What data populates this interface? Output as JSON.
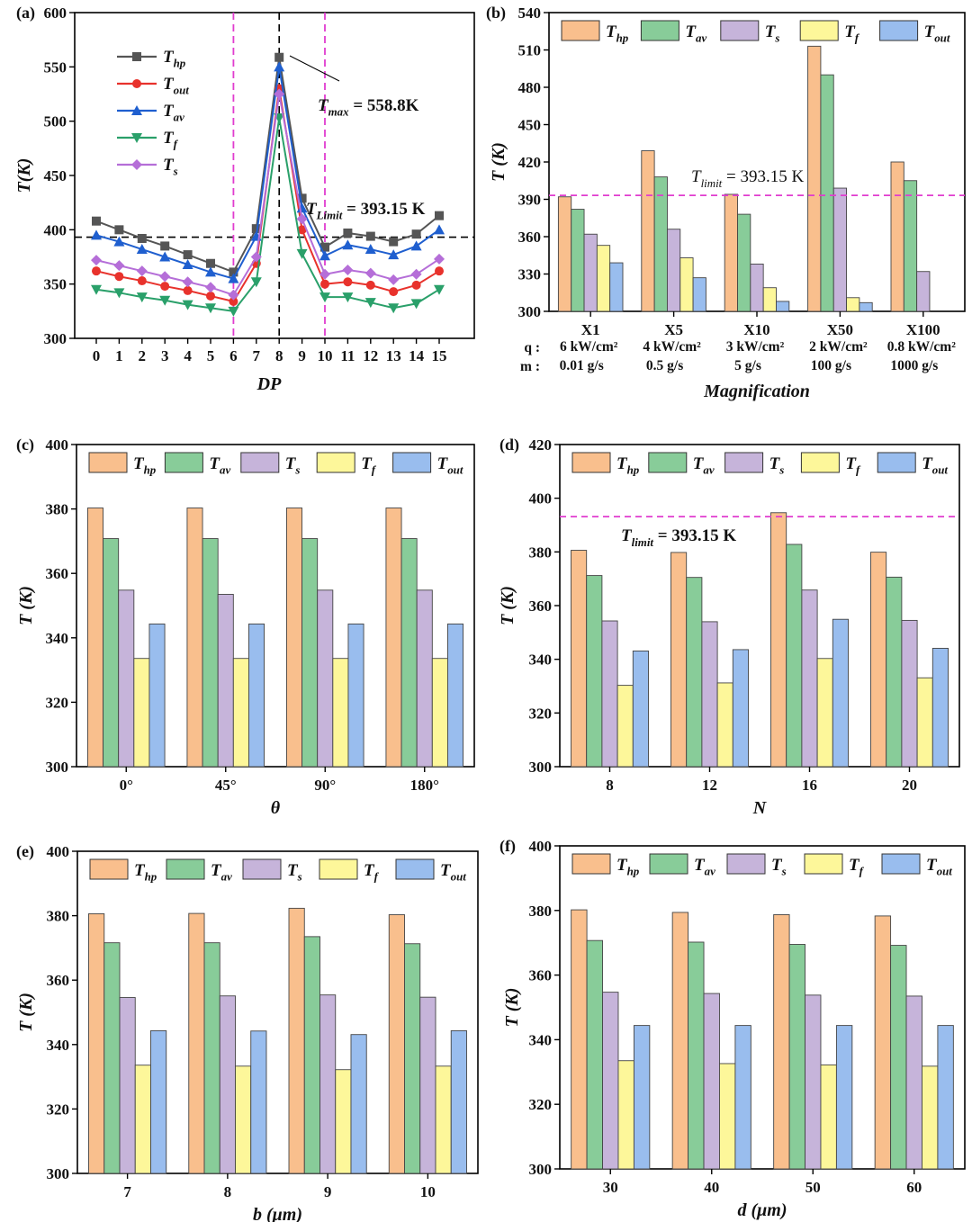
{
  "colors": {
    "T_hp": "#f9bf8d",
    "T_av": "#88cc99",
    "T_s": "#c6b4da",
    "T_f": "#fdf79a",
    "T_out": "#99bdee",
    "line_T_hp": "#555555",
    "line_T_out": "#e8322c",
    "line_T_av": "#1f5fcf",
    "line_T_f": "#2aa06a",
    "line_T_s": "#b56ed8",
    "limit_dash": "#e03ccf",
    "black_dash": "#000000"
  },
  "legend": [
    {
      "key": "T_hp",
      "base": "T",
      "sub": "hp"
    },
    {
      "key": "T_av",
      "base": "T",
      "sub": "av"
    },
    {
      "key": "T_s",
      "base": "T",
      "sub": "s"
    },
    {
      "key": "T_f",
      "base": "T",
      "sub": "f"
    },
    {
      "key": "T_out",
      "base": "T",
      "sub": "out"
    }
  ],
  "line_legend": [
    {
      "key": "T_hp",
      "base": "T",
      "sub": "hp",
      "marker": "square"
    },
    {
      "key": "T_out",
      "base": "T",
      "sub": "out",
      "marker": "circle"
    },
    {
      "key": "T_av",
      "base": "T",
      "sub": "av",
      "marker": "triangle-up"
    },
    {
      "key": "T_f",
      "base": "T",
      "sub": "f",
      "marker": "triangle-down"
    },
    {
      "key": "T_s",
      "base": "T",
      "sub": "s",
      "marker": "diamond"
    }
  ],
  "chart_data": [
    {
      "id": "a",
      "panel_label": "(a)",
      "type": "line",
      "xlabel": "DP",
      "ylabel": "T(K)",
      "ylim": [
        300,
        600
      ],
      "yticks": [
        300,
        350,
        400,
        450,
        500,
        550,
        600
      ],
      "x": [
        0,
        1,
        2,
        3,
        4,
        5,
        6,
        7,
        8,
        9,
        10,
        11,
        12,
        13,
        14,
        15
      ],
      "series": [
        {
          "key": "T_hp",
          "values": [
            408,
            400,
            392,
            385,
            377,
            369,
            361,
            401,
            558.8,
            429,
            384,
            397,
            394,
            389,
            396,
            413
          ]
        },
        {
          "key": "T_out",
          "values": [
            362,
            357,
            353,
            348,
            344,
            339,
            334,
            369,
            530,
            400,
            350,
            352,
            349,
            343,
            349,
            362
          ]
        },
        {
          "key": "T_av",
          "values": [
            395,
            389,
            382,
            375,
            368,
            361,
            355,
            394,
            550,
            420,
            376,
            386,
            382,
            377,
            385,
            400
          ]
        },
        {
          "key": "T_f",
          "values": [
            345,
            342,
            338,
            335,
            331,
            328,
            325,
            352,
            503,
            378,
            338,
            338,
            333,
            328,
            332,
            345
          ]
        },
        {
          "key": "T_s",
          "values": [
            372,
            367,
            362,
            357,
            352,
            347,
            340,
            375,
            525,
            410,
            359,
            363,
            360,
            354,
            359,
            373
          ]
        }
      ],
      "hline": 393.15,
      "vlines_magenta": [
        6,
        10
      ],
      "vline_black": 8,
      "annotations": {
        "tmax_base": "T",
        "tmax_sub": "max",
        "tmax_text": " = 558.8K",
        "tlimit_base": "T",
        "tlimit_sub": "Limit",
        "tlimit_text": " = 393.15 K"
      }
    },
    {
      "id": "b",
      "panel_label": "(b)",
      "type": "bar",
      "xlabel": "Magnification",
      "ylabel": "T (K)",
      "ylim": [
        300,
        540
      ],
      "yticks": [
        300,
        330,
        360,
        390,
        420,
        450,
        480,
        510,
        540
      ],
      "categories": [
        "X1",
        "X5",
        "X10",
        "X50",
        "X100"
      ],
      "conditions": {
        "q_label": "q :",
        "m_label": "m :",
        "q": [
          "6 kW/cm²",
          "4 kW/cm²",
          "3 kW/cm²",
          "2  kW/cm²",
          "0.8 kW/cm²"
        ],
        "m": [
          "0.01 g/s",
          "0.5 g/s",
          "5 g/s",
          "100 g/s",
          "1000 g/s"
        ]
      },
      "series": [
        {
          "key": "T_hp",
          "values": [
            392,
            429,
            394,
            513,
            420
          ]
        },
        {
          "key": "T_av",
          "values": [
            382,
            408,
            378,
            490,
            405
          ]
        },
        {
          "key": "T_s",
          "values": [
            362,
            366,
            338,
            399,
            332
          ]
        },
        {
          "key": "T_f",
          "values": [
            353,
            343,
            319,
            311,
            null
          ]
        },
        {
          "key": "T_out",
          "values": [
            339,
            327,
            308,
            307,
            null
          ]
        }
      ],
      "hline": 393.15,
      "annotation": {
        "base": "T",
        "sub": "limit",
        "text": " = 393.15 K"
      }
    },
    {
      "id": "c",
      "panel_label": "(c)",
      "type": "bar",
      "xlabel": "θ",
      "ylabel": "T (K)",
      "ylim": [
        300,
        400
      ],
      "yticks": [
        300,
        320,
        340,
        360,
        380,
        400
      ],
      "categories": [
        "0°",
        "45°",
        "90°",
        "180°"
      ],
      "series": [
        {
          "key": "T_hp",
          "values": [
            380.3,
            380.3,
            380.3,
            380.3
          ]
        },
        {
          "key": "T_av",
          "values": [
            370.8,
            370.8,
            370.8,
            370.8
          ]
        },
        {
          "key": "T_s",
          "values": [
            354.8,
            353.5,
            354.8,
            354.8
          ]
        },
        {
          "key": "T_f",
          "values": [
            333.6,
            333.6,
            333.6,
            333.6
          ]
        },
        {
          "key": "T_out",
          "values": [
            344.3,
            344.3,
            344.3,
            344.3
          ]
        }
      ]
    },
    {
      "id": "d",
      "panel_label": "(d)",
      "type": "bar",
      "xlabel": "N",
      "ylabel": "T (K)",
      "ylim": [
        300,
        420
      ],
      "yticks": [
        300,
        320,
        340,
        360,
        380,
        400,
        420
      ],
      "categories": [
        "8",
        "12",
        "16",
        "20"
      ],
      "series": [
        {
          "key": "T_hp",
          "values": [
            380.6,
            379.8,
            394.6,
            379.9
          ]
        },
        {
          "key": "T_av",
          "values": [
            371.2,
            370.5,
            382.8,
            370.6
          ]
        },
        {
          "key": "T_s",
          "values": [
            354.3,
            354.0,
            365.8,
            354.5
          ]
        },
        {
          "key": "T_f",
          "values": [
            330.3,
            331.2,
            340.3,
            333.1
          ]
        },
        {
          "key": "T_out",
          "values": [
            343.1,
            343.6,
            354.9,
            344.1
          ]
        }
      ],
      "hline": 393.15,
      "annotation": {
        "base": "T",
        "sub": "limit",
        "text": " = 393.15 K"
      }
    },
    {
      "id": "e",
      "panel_label": "(e)",
      "type": "bar",
      "xlabel": "b (μm)",
      "ylabel": "T (K)",
      "ylim": [
        300,
        400
      ],
      "yticks": [
        300,
        320,
        340,
        360,
        380,
        400
      ],
      "categories": [
        "7",
        "8",
        "9",
        "10"
      ],
      "series": [
        {
          "key": "T_hp",
          "values": [
            380.6,
            380.7,
            382.3,
            380.3
          ]
        },
        {
          "key": "T_av",
          "values": [
            371.6,
            371.6,
            373.5,
            371.3
          ]
        },
        {
          "key": "T_s",
          "values": [
            354.6,
            355.1,
            355.4,
            354.7
          ]
        },
        {
          "key": "T_f",
          "values": [
            333.6,
            333.3,
            332.2,
            333.3
          ]
        },
        {
          "key": "T_out",
          "values": [
            344.3,
            344.2,
            343.1,
            344.3
          ]
        }
      ]
    },
    {
      "id": "f",
      "panel_label": "(f)",
      "type": "bar",
      "xlabel": "d (μm)",
      "ylabel": "T (K)",
      "ylim": [
        300,
        400
      ],
      "yticks": [
        300,
        320,
        340,
        360,
        380,
        400
      ],
      "categories": [
        "30",
        "40",
        "50",
        "60"
      ],
      "series": [
        {
          "key": "T_hp",
          "values": [
            380.2,
            379.4,
            378.7,
            378.3
          ]
        },
        {
          "key": "T_av",
          "values": [
            370.7,
            370.2,
            369.5,
            369.2
          ]
        },
        {
          "key": "T_s",
          "values": [
            354.7,
            354.3,
            353.8,
            353.5
          ]
        },
        {
          "key": "T_f",
          "values": [
            333.5,
            332.6,
            332.2,
            331.8
          ]
        },
        {
          "key": "T_out",
          "values": [
            344.4,
            344.4,
            344.4,
            344.4
          ]
        }
      ]
    }
  ]
}
